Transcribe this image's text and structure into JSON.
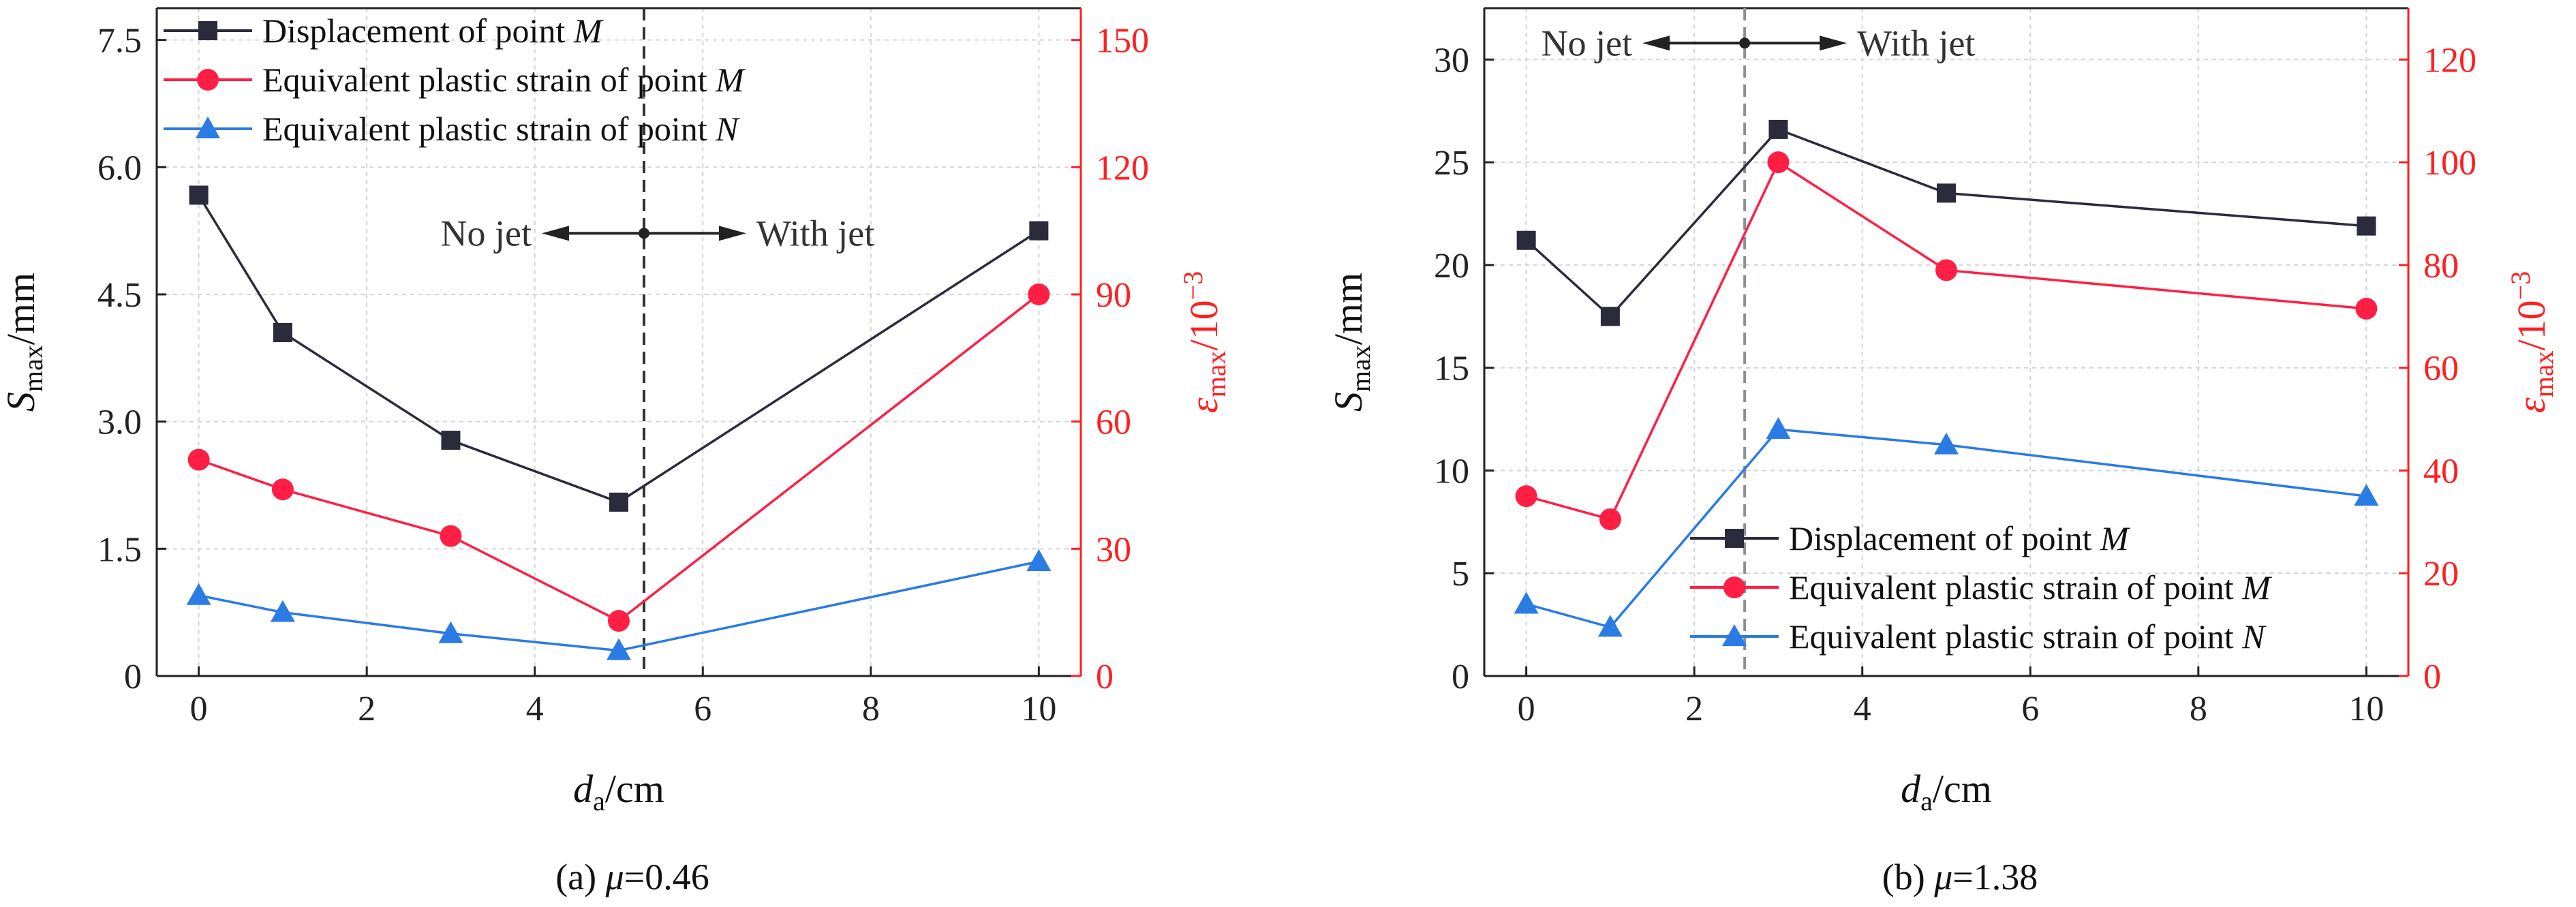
{
  "colors": {
    "displacement": "#2b2b3b",
    "strain_m": "#ff1f44",
    "strain_n": "#2a7be4",
    "right_axis": "#ff1f1f",
    "grid": "#d4d4d4",
    "divider_a": "#333333",
    "divider_b": "#8a8f98"
  },
  "chart_data": [
    {
      "type": "line",
      "caption": "(a) μ=0.46",
      "xlabel": "da/cm",
      "ylabel_left": "Smax/mm",
      "ylabel_right": "εmax/10−3",
      "xlim": [
        -0.5,
        10.5
      ],
      "ylim_left": [
        0,
        7.875
      ],
      "ylim_right": [
        0,
        157.5
      ],
      "xticks": [
        0,
        2,
        4,
        6,
        8,
        10
      ],
      "yticks_left": [
        0,
        1.5,
        3.0,
        4.5,
        6.0,
        7.5
      ],
      "ytick_labels_left": [
        "0",
        "1.5",
        "3.0",
        "4.5",
        "6.0",
        "7.5"
      ],
      "yticks_right": [
        0,
        30,
        60,
        90,
        120,
        150
      ],
      "grid": true,
      "legend_position": "top-left",
      "divider_x": 5.3,
      "annotation": {
        "left": "No jet",
        "right": "With jet",
        "y_left": 5.22
      },
      "series": [
        {
          "name": "Displacement of point M",
          "axis": "left",
          "marker": "square",
          "color_key": "displacement",
          "x": [
            0,
            1,
            3,
            5,
            10
          ],
          "y": [
            5.67,
            4.05,
            2.78,
            2.05,
            5.25
          ]
        },
        {
          "name": "Equivalent plastic strain of point M",
          "axis": "right",
          "marker": "circle",
          "color_key": "strain_m",
          "x": [
            0,
            1,
            3,
            5,
            10
          ],
          "y": [
            51,
            44,
            33,
            13,
            90
          ]
        },
        {
          "name": "Equivalent plastic strain of point N",
          "axis": "right",
          "marker": "triangle",
          "color_key": "strain_n",
          "x": [
            0,
            1,
            3,
            5,
            10
          ],
          "y": [
            19,
            15,
            10,
            6,
            27
          ]
        }
      ]
    },
    {
      "type": "line",
      "caption": "(b) μ=1.38",
      "xlabel": "da/cm",
      "ylabel_left": "Smax/mm",
      "ylabel_right": "εmax/10−3",
      "xlim": [
        -0.5,
        10.5
      ],
      "ylim_left": [
        0,
        32.5
      ],
      "ylim_right": [
        0,
        130
      ],
      "xticks": [
        0,
        2,
        4,
        6,
        8,
        10
      ],
      "yticks_left": [
        0,
        5,
        10,
        15,
        20,
        25,
        30
      ],
      "ytick_labels_left": [
        "0",
        "5",
        "10",
        "15",
        "20",
        "25",
        "30"
      ],
      "yticks_right": [
        0,
        20,
        40,
        60,
        80,
        100,
        120
      ],
      "grid": true,
      "legend_position": "bottom-center",
      "divider_x": 2.6,
      "annotation": {
        "left": "No jet",
        "right": "With jet",
        "y_left": 30.8
      },
      "series": [
        {
          "name": "Displacement of point M",
          "axis": "left",
          "marker": "square",
          "color_key": "displacement",
          "x": [
            0,
            1,
            3,
            5,
            10
          ],
          "y": [
            21.2,
            17.5,
            26.6,
            23.5,
            21.9
          ]
        },
        {
          "name": "Equivalent plastic strain of point M",
          "axis": "right",
          "marker": "circle",
          "color_key": "strain_m",
          "x": [
            0,
            1,
            3,
            5,
            10
          ],
          "y": [
            35,
            30.5,
            100,
            79,
            71.5
          ]
        },
        {
          "name": "Equivalent plastic strain of point N",
          "axis": "right",
          "marker": "triangle",
          "color_key": "strain_n",
          "x": [
            0,
            1,
            3,
            5,
            10
          ],
          "y": [
            14,
            9.5,
            48,
            45,
            35
          ]
        }
      ]
    }
  ]
}
